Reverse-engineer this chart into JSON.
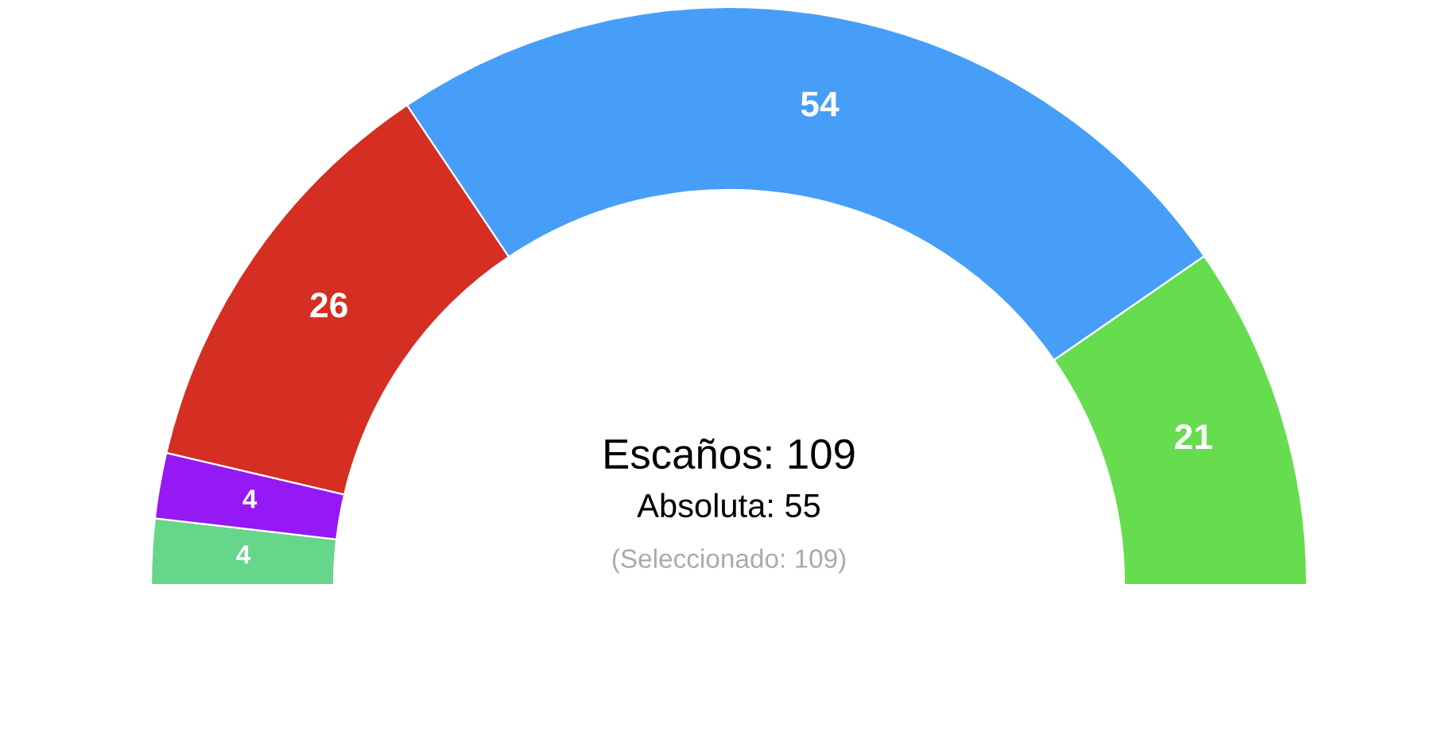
{
  "chart_data": {
    "type": "donut",
    "categories": [
      null,
      null,
      null,
      null,
      null
    ],
    "values": [
      4,
      4,
      26,
      54,
      21
    ],
    "colors": [
      "#66d68a",
      "#9419f5",
      "#d52e22",
      "#479ef8",
      "#66dd4e"
    ],
    "data_labels": true,
    "legend": false,
    "annotations": [
      "Escaños: 109",
      "Absoluta: 55",
      "(Seleccionado: 109)"
    ]
  }
}
